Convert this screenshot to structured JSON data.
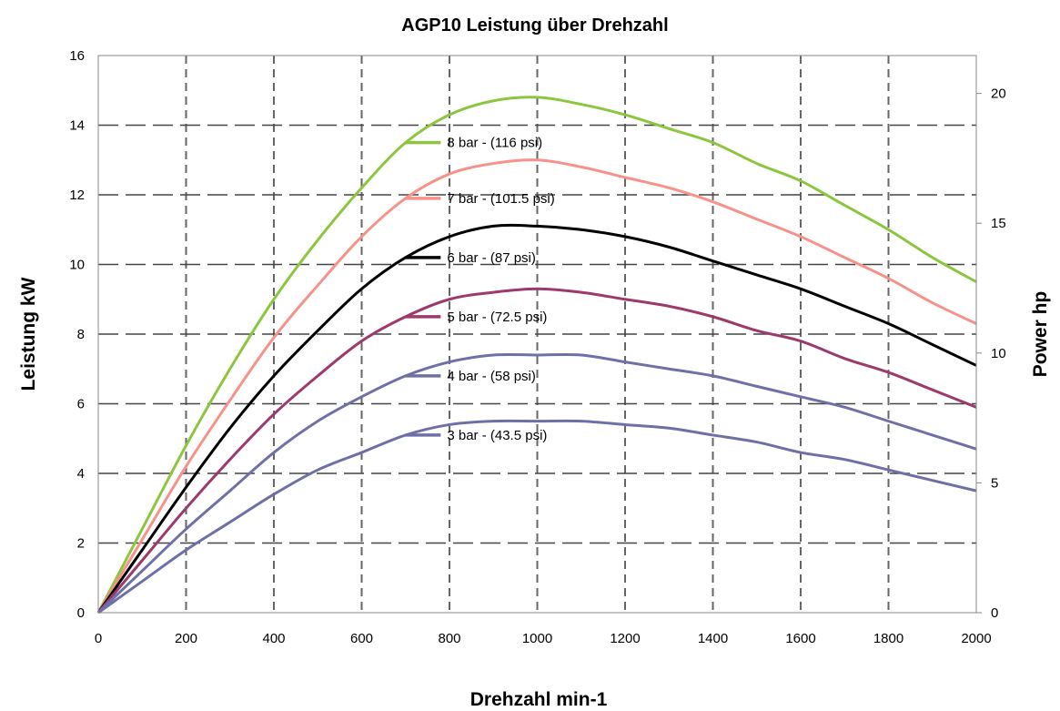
{
  "chart_data": {
    "type": "line",
    "title": "AGP10 Leistung über Drehzahl",
    "xlabel": "Drehzahl min-1",
    "ylabel": "Leistung kW",
    "y2label": "Power hp",
    "xlim": [
      0,
      2000
    ],
    "ylim": [
      0,
      16
    ],
    "y2lim": [
      0,
      21.46
    ],
    "x_ticks": [
      0,
      200,
      400,
      600,
      800,
      1000,
      1200,
      1400,
      1600,
      1800,
      2000
    ],
    "y_ticks": [
      0,
      2,
      4,
      6,
      8,
      10,
      12,
      14,
      16
    ],
    "y2_ticks": [
      0,
      5,
      10,
      15,
      20
    ],
    "grid": "dashed",
    "legend_placement": "inline",
    "x": [
      0,
      100,
      200,
      300,
      400,
      500,
      600,
      700,
      800,
      900,
      1000,
      1100,
      1200,
      1300,
      1400,
      1500,
      1600,
      1700,
      1800,
      1900,
      2000
    ],
    "series": [
      {
        "name": "8 bar - (116 psi)",
        "color": "#8cc63f",
        "values": [
          0,
          2.4,
          4.8,
          7.0,
          9.0,
          10.7,
          12.2,
          13.5,
          14.3,
          14.7,
          14.8,
          14.6,
          14.3,
          13.9,
          13.5,
          12.9,
          12.4,
          11.7,
          11.0,
          10.2,
          9.5
        ]
      },
      {
        "name": "7 bar - (101.5 psi)",
        "color": "#f7928a",
        "values": [
          0,
          2.1,
          4.2,
          6.1,
          7.9,
          9.4,
          10.8,
          11.9,
          12.6,
          12.9,
          13.0,
          12.8,
          12.5,
          12.2,
          11.8,
          11.3,
          10.8,
          10.2,
          9.6,
          8.9,
          8.3
        ]
      },
      {
        "name": "6 bar - (87 psi)",
        "color": "#000000",
        "values": [
          0,
          1.8,
          3.6,
          5.3,
          6.8,
          8.1,
          9.3,
          10.2,
          10.8,
          11.1,
          11.1,
          11.0,
          10.8,
          10.5,
          10.1,
          9.7,
          9.3,
          8.8,
          8.3,
          7.7,
          7.1
        ]
      },
      {
        "name": "5 bar - (72.5 psi)",
        "color": "#9c3a6b",
        "values": [
          0,
          1.5,
          3.0,
          4.4,
          5.7,
          6.8,
          7.8,
          8.5,
          9.0,
          9.2,
          9.3,
          9.2,
          9.0,
          8.8,
          8.5,
          8.1,
          7.8,
          7.3,
          6.9,
          6.4,
          5.9
        ]
      },
      {
        "name": "4 bar - (58 psi)",
        "color": "#7070a8",
        "values": [
          0,
          1.2,
          2.4,
          3.5,
          4.6,
          5.5,
          6.2,
          6.8,
          7.2,
          7.4,
          7.4,
          7.4,
          7.2,
          7.0,
          6.8,
          6.5,
          6.2,
          5.9,
          5.5,
          5.1,
          4.7
        ]
      },
      {
        "name": "3 bar - (43.5 psi)",
        "color": "#6f6fa8",
        "values": [
          0,
          0.9,
          1.8,
          2.6,
          3.4,
          4.1,
          4.6,
          5.1,
          5.4,
          5.5,
          5.5,
          5.5,
          5.4,
          5.3,
          5.1,
          4.9,
          4.6,
          4.4,
          4.1,
          3.8,
          3.5
        ]
      }
    ]
  }
}
